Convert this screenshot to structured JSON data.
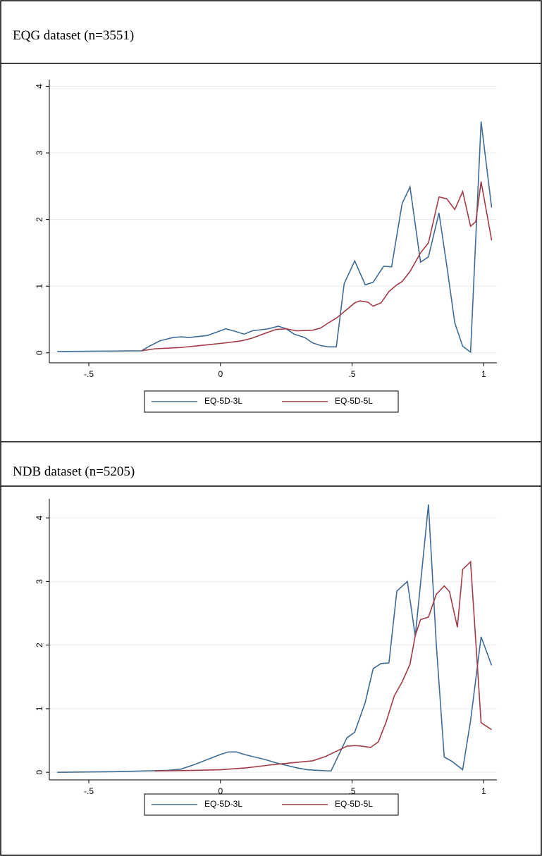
{
  "chart_data": [
    {
      "type": "line",
      "title": "EQG dataset (n=3551)",
      "xlim": [
        -0.65,
        1.05
      ],
      "ylim": [
        -0.15,
        4.1
      ],
      "xticks": [
        {
          "value": -0.5,
          "label": "-.5"
        },
        0,
        {
          "value": 0.5,
          "label": ".5"
        },
        1
      ],
      "yticks": [
        0,
        1,
        2,
        3,
        4
      ],
      "grid": true,
      "series": [
        {
          "name": "EQ-5D-3L",
          "color": "#3e6b94",
          "x": [
            -0.62,
            -0.3,
            -0.27,
            -0.23,
            -0.18,
            -0.15,
            -0.12,
            -0.05,
            0.02,
            0.05,
            0.09,
            0.12,
            0.18,
            0.22,
            0.25,
            0.28,
            0.32,
            0.35,
            0.38,
            0.41,
            0.44,
            0.47,
            0.51,
            0.55,
            0.58,
            0.62,
            0.65,
            0.69,
            0.72,
            0.76,
            0.79,
            0.83,
            0.86,
            0.89,
            0.92,
            0.95,
            0.99,
            1.03
          ],
          "values": [
            0.02,
            0.03,
            0.1,
            0.18,
            0.23,
            0.24,
            0.23,
            0.26,
            0.36,
            0.33,
            0.28,
            0.33,
            0.36,
            0.4,
            0.36,
            0.28,
            0.23,
            0.15,
            0.11,
            0.09,
            0.09,
            1.04,
            1.38,
            1.02,
            1.06,
            1.3,
            1.29,
            2.24,
            2.49,
            1.36,
            1.44,
            2.1,
            1.3,
            0.45,
            0.1,
            0.01,
            3.47,
            2.18
          ]
        },
        {
          "name": "EQ-5D-5L",
          "color": "#a23b45",
          "x": [
            -0.3,
            -0.25,
            -0.15,
            -0.05,
            0.02,
            0.08,
            0.12,
            0.16,
            0.21,
            0.25,
            0.29,
            0.35,
            0.38,
            0.41,
            0.44,
            0.48,
            0.51,
            0.53,
            0.56,
            0.58,
            0.61,
            0.64,
            0.67,
            0.69,
            0.72,
            0.76,
            0.79,
            0.83,
            0.86,
            0.89,
            0.92,
            0.95,
            0.97,
            0.99,
            1.03
          ],
          "values": [
            0.03,
            0.06,
            0.08,
            0.12,
            0.15,
            0.18,
            0.22,
            0.28,
            0.35,
            0.36,
            0.33,
            0.34,
            0.37,
            0.45,
            0.52,
            0.65,
            0.75,
            0.78,
            0.76,
            0.7,
            0.75,
            0.92,
            1.02,
            1.07,
            1.22,
            1.5,
            1.65,
            2.34,
            2.31,
            2.15,
            2.42,
            1.9,
            1.97,
            2.57,
            1.69
          ]
        }
      ]
    },
    {
      "type": "line",
      "title": "NDB dataset (n=5205)",
      "xlim": [
        -0.65,
        1.05
      ],
      "ylim": [
        -0.12,
        4.3
      ],
      "xticks": [
        {
          "value": -0.5,
          "label": "-.5"
        },
        0,
        {
          "value": 0.5,
          "label": ".5"
        },
        1
      ],
      "yticks": [
        0,
        1,
        2,
        3,
        4
      ],
      "grid": true,
      "series": [
        {
          "name": "EQ-5D-3L",
          "color": "#3e6b94",
          "x": [
            -0.62,
            -0.4,
            -0.2,
            -0.15,
            -0.1,
            -0.05,
            0.0,
            0.03,
            0.06,
            0.09,
            0.13,
            0.17,
            0.21,
            0.25,
            0.29,
            0.33,
            0.37,
            0.42,
            0.48,
            0.51,
            0.55,
            0.58,
            0.61,
            0.64,
            0.67,
            0.71,
            0.74,
            0.79,
            0.82,
            0.85,
            0.88,
            0.92,
            0.95,
            0.99,
            1.03
          ],
          "values": [
            0.0,
            0.01,
            0.03,
            0.05,
            0.12,
            0.2,
            0.28,
            0.32,
            0.32,
            0.28,
            0.24,
            0.2,
            0.15,
            0.11,
            0.07,
            0.04,
            0.03,
            0.02,
            0.54,
            0.63,
            1.1,
            1.63,
            1.71,
            1.72,
            2.85,
            3.0,
            2.14,
            4.21,
            2.0,
            0.24,
            0.17,
            0.04,
            0.81,
            2.13,
            1.68
          ]
        },
        {
          "name": "EQ-5D-5L",
          "color": "#a23b45",
          "x": [
            -0.25,
            -0.1,
            0.0,
            0.1,
            0.2,
            0.3,
            0.35,
            0.4,
            0.45,
            0.48,
            0.51,
            0.54,
            0.57,
            0.6,
            0.63,
            0.66,
            0.69,
            0.72,
            0.74,
            0.76,
            0.79,
            0.82,
            0.85,
            0.87,
            0.9,
            0.92,
            0.95,
            0.99,
            1.03
          ],
          "values": [
            0.02,
            0.03,
            0.04,
            0.07,
            0.12,
            0.16,
            0.18,
            0.25,
            0.35,
            0.41,
            0.42,
            0.41,
            0.39,
            0.48,
            0.8,
            1.2,
            1.42,
            1.7,
            2.15,
            2.4,
            2.44,
            2.8,
            2.93,
            2.84,
            2.28,
            3.19,
            3.31,
            0.78,
            0.67
          ]
        }
      ]
    }
  ]
}
